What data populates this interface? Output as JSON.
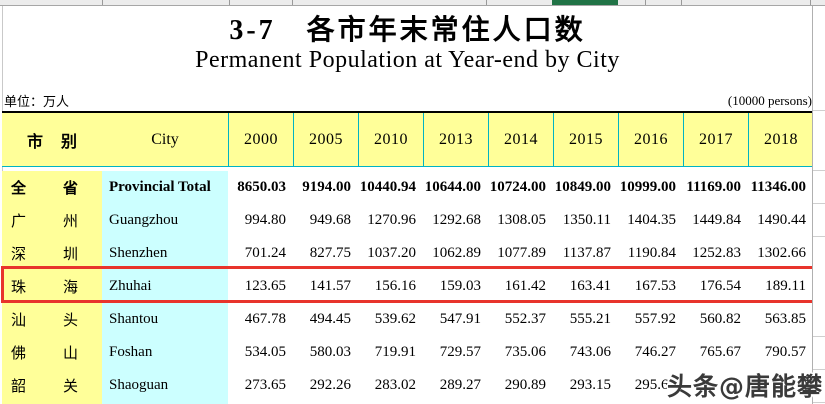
{
  "title": "3-7　各市年末常住人口数",
  "subtitle": "Permanent Population at Year-end by City",
  "unit_left": "单位：万人",
  "unit_right": "(10000 persons)",
  "watermark": "头条@唐能攀",
  "colors": {
    "header_bg": "#FFFF99",
    "cn_column_bg": "#FFFF99",
    "en_column_bg": "#CCFFFF",
    "divider_teal": "#00B3C4",
    "highlight_border_red": "#E8342C",
    "excel_selected_tab_green": "#217346"
  },
  "table": {
    "header": {
      "col_cn_chars": [
        "市",
        "别"
      ],
      "col_en": "City",
      "years": [
        "2000",
        "2005",
        "2010",
        "2013",
        "2014",
        "2015",
        "2016",
        "2017",
        "2018"
      ]
    },
    "rows": [
      {
        "cn": [
          "全",
          "省"
        ],
        "en": "Provincial Total",
        "bold": true,
        "highlight": false,
        "values": [
          "8650.03",
          "9194.00",
          "10440.94",
          "10644.00",
          "10724.00",
          "10849.00",
          "10999.00",
          "11169.00",
          "11346.00"
        ]
      },
      {
        "cn": [
          "广",
          "州"
        ],
        "en": "Guangzhou",
        "bold": false,
        "highlight": false,
        "values": [
          "994.80",
          "949.68",
          "1270.96",
          "1292.68",
          "1308.05",
          "1350.11",
          "1404.35",
          "1449.84",
          "1490.44"
        ]
      },
      {
        "cn": [
          "深",
          "圳"
        ],
        "en": "Shenzhen",
        "bold": false,
        "highlight": false,
        "values": [
          "701.24",
          "827.75",
          "1037.20",
          "1062.89",
          "1077.89",
          "1137.87",
          "1190.84",
          "1252.83",
          "1302.66"
        ]
      },
      {
        "cn": [
          "珠",
          "海"
        ],
        "en": "Zhuhai",
        "bold": false,
        "highlight": true,
        "values": [
          "123.65",
          "141.57",
          "156.16",
          "159.03",
          "161.42",
          "163.41",
          "167.53",
          "176.54",
          "189.11"
        ]
      },
      {
        "cn": [
          "汕",
          "头"
        ],
        "en": "Shantou",
        "bold": false,
        "highlight": false,
        "values": [
          "467.78",
          "494.45",
          "539.62",
          "547.91",
          "552.37",
          "555.21",
          "557.92",
          "560.82",
          "563.85"
        ]
      },
      {
        "cn": [
          "佛",
          "山"
        ],
        "en": "Foshan",
        "bold": false,
        "highlight": false,
        "values": [
          "534.05",
          "580.03",
          "719.91",
          "729.57",
          "735.06",
          "743.06",
          "746.27",
          "765.67",
          "790.57"
        ]
      },
      {
        "cn": [
          "韶",
          "关"
        ],
        "en": "Shaoguan",
        "bold": false,
        "highlight": false,
        "values": [
          "273.65",
          "292.26",
          "283.02",
          "289.27",
          "290.89",
          "293.15",
          "295.61",
          "",
          ""
        ]
      }
    ]
  }
}
